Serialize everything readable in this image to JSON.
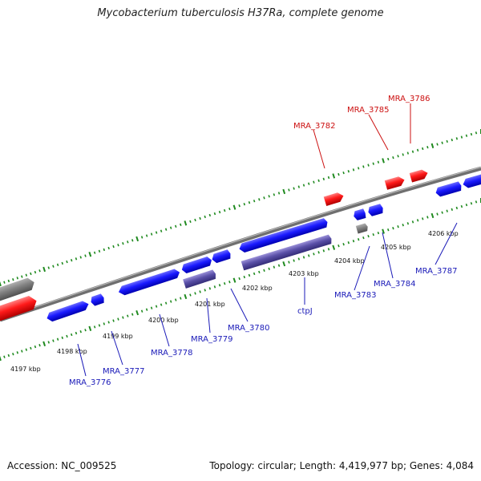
{
  "title": "Mycobacterium tuberculosis H37Ra, complete genome",
  "footer": {
    "accession": "Accession: NC_009525",
    "summary": "Topology: circular; Length: 4,419,977 bp; Genes: 4,084"
  },
  "colors": {
    "forward_gene": "#1a1aff",
    "reverse_gene": "#5a50a8",
    "rna_gene": "#ff2020",
    "other_gene": "#808080",
    "backbone": "#7a7a7a",
    "tick": "#1f8a1f",
    "label_blue": "#1a1ab8",
    "label_red": "#cc1111"
  },
  "ticks": [
    "4197 kbp",
    "4198 kbp",
    "4199 kbp",
    "4200 kbp",
    "4201 kbp",
    "4202 kbp",
    "4203 kbp",
    "4204 kbp",
    "4205 kbp",
    "4206 kbp"
  ],
  "genes": [
    {
      "label": "MRA_3776",
      "color": "label_blue"
    },
    {
      "label": "MRA_3777",
      "color": "label_blue"
    },
    {
      "label": "MRA_3778",
      "color": "label_blue"
    },
    {
      "label": "MRA_3779",
      "color": "label_blue"
    },
    {
      "label": "MRA_3780",
      "color": "label_blue"
    },
    {
      "label": "ctpJ",
      "color": "label_blue"
    },
    {
      "label": "MRA_3782",
      "color": "label_red"
    },
    {
      "label": "MRA_3783",
      "color": "label_blue"
    },
    {
      "label": "MRA_3784",
      "color": "label_blue"
    },
    {
      "label": "MRA_3785",
      "color": "label_red"
    },
    {
      "label": "MRA_3786",
      "color": "label_red"
    },
    {
      "label": "MRA_3787",
      "color": "label_blue"
    }
  ]
}
